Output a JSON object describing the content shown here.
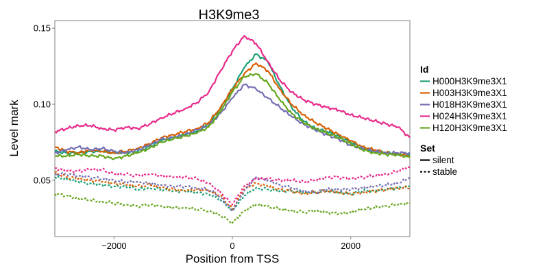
{
  "chart_data": {
    "type": "line",
    "title": "H3K9me3",
    "xlabel": "Position from TSS",
    "ylabel": "Level mark",
    "xlim": [
      -3000,
      3000
    ],
    "ylim": [
      0.013,
      0.155
    ],
    "x_ticks": [
      -2000,
      0,
      2000
    ],
    "x_tick_labels": [
      "−2000",
      "0",
      "2000"
    ],
    "y_ticks": [
      0.05,
      0.1,
      0.15
    ],
    "y_tick_labels": [
      "0.05",
      "0.10",
      "0.15"
    ],
    "grid": false,
    "legend_position": "right",
    "x": [
      -3000,
      -2800,
      -2600,
      -2400,
      -2200,
      -2000,
      -1800,
      -1600,
      -1400,
      -1200,
      -1000,
      -800,
      -600,
      -400,
      -200,
      0,
      200,
      400,
      600,
      800,
      1000,
      1200,
      1400,
      1600,
      1800,
      2000,
      2200,
      2400,
      2600,
      2800,
      3000
    ],
    "series": [
      {
        "name": "H000H3K9me3X1",
        "set": "silent",
        "color": "#1b9e77",
        "values": [
          0.069,
          0.068,
          0.068,
          0.069,
          0.069,
          0.068,
          0.068,
          0.069,
          0.072,
          0.076,
          0.078,
          0.08,
          0.082,
          0.087,
          0.097,
          0.11,
          0.124,
          0.133,
          0.128,
          0.112,
          0.098,
          0.089,
          0.084,
          0.082,
          0.079,
          0.075,
          0.071,
          0.069,
          0.068,
          0.067,
          0.067
        ]
      },
      {
        "name": "H003H3K9me3X1",
        "set": "silent",
        "color": "#d95f02",
        "values": [
          0.072,
          0.069,
          0.068,
          0.07,
          0.069,
          0.068,
          0.069,
          0.071,
          0.074,
          0.078,
          0.08,
          0.082,
          0.084,
          0.088,
          0.098,
          0.11,
          0.12,
          0.127,
          0.122,
          0.11,
          0.1,
          0.093,
          0.088,
          0.084,
          0.08,
          0.076,
          0.072,
          0.07,
          0.068,
          0.067,
          0.066
        ]
      },
      {
        "name": "H018H3K9me3X1",
        "set": "silent",
        "color": "#7570b3",
        "values": [
          0.068,
          0.07,
          0.072,
          0.07,
          0.071,
          0.069,
          0.068,
          0.07,
          0.073,
          0.077,
          0.078,
          0.08,
          0.083,
          0.086,
          0.094,
          0.104,
          0.113,
          0.11,
          0.104,
          0.098,
          0.092,
          0.087,
          0.083,
          0.08,
          0.077,
          0.073,
          0.071,
          0.069,
          0.068,
          0.068,
          0.068
        ]
      },
      {
        "name": "H024H3K9me3X1",
        "set": "silent",
        "color": "#e7298a",
        "values": [
          0.082,
          0.084,
          0.086,
          0.086,
          0.084,
          0.083,
          0.085,
          0.084,
          0.087,
          0.091,
          0.094,
          0.097,
          0.101,
          0.108,
          0.122,
          0.135,
          0.145,
          0.14,
          0.128,
          0.116,
          0.108,
          0.103,
          0.1,
          0.098,
          0.096,
          0.093,
          0.091,
          0.089,
          0.087,
          0.085,
          0.078
        ]
      },
      {
        "name": "H120H3K9me3X1",
        "set": "silent",
        "color": "#66a61e",
        "values": [
          0.066,
          0.066,
          0.067,
          0.066,
          0.066,
          0.064,
          0.066,
          0.068,
          0.071,
          0.075,
          0.077,
          0.079,
          0.081,
          0.085,
          0.095,
          0.108,
          0.118,
          0.12,
          0.114,
          0.103,
          0.094,
          0.088,
          0.084,
          0.081,
          0.078,
          0.074,
          0.07,
          0.068,
          0.067,
          0.067,
          0.065
        ]
      },
      {
        "name": "H000H3K9me3X1",
        "set": "stable",
        "color": "#1b9e77",
        "values": [
          0.052,
          0.051,
          0.049,
          0.048,
          0.047,
          0.046,
          0.046,
          0.044,
          0.045,
          0.044,
          0.043,
          0.043,
          0.042,
          0.041,
          0.037,
          0.03,
          0.04,
          0.045,
          0.044,
          0.043,
          0.043,
          0.042,
          0.042,
          0.043,
          0.042,
          0.041,
          0.043,
          0.043,
          0.044,
          0.045,
          0.046
        ]
      },
      {
        "name": "H003H3K9me3X1",
        "set": "stable",
        "color": "#d95f02",
        "values": [
          0.055,
          0.052,
          0.051,
          0.05,
          0.049,
          0.048,
          0.047,
          0.046,
          0.047,
          0.045,
          0.044,
          0.043,
          0.044,
          0.043,
          0.04,
          0.031,
          0.044,
          0.048,
          0.046,
          0.044,
          0.043,
          0.041,
          0.042,
          0.043,
          0.042,
          0.041,
          0.042,
          0.043,
          0.044,
          0.045,
          0.045
        ]
      },
      {
        "name": "H018H3K9me3X1",
        "set": "stable",
        "color": "#7570b3",
        "values": [
          0.054,
          0.054,
          0.053,
          0.052,
          0.051,
          0.05,
          0.049,
          0.049,
          0.048,
          0.047,
          0.046,
          0.046,
          0.045,
          0.044,
          0.039,
          0.03,
          0.043,
          0.052,
          0.05,
          0.047,
          0.045,
          0.043,
          0.042,
          0.044,
          0.044,
          0.044,
          0.045,
          0.046,
          0.047,
          0.048,
          0.052
        ]
      },
      {
        "name": "H024H3K9me3X1",
        "set": "stable",
        "color": "#e7298a",
        "values": [
          0.058,
          0.056,
          0.056,
          0.057,
          0.057,
          0.054,
          0.054,
          0.053,
          0.054,
          0.053,
          0.052,
          0.052,
          0.051,
          0.048,
          0.042,
          0.034,
          0.046,
          0.051,
          0.051,
          0.05,
          0.05,
          0.049,
          0.05,
          0.052,
          0.052,
          0.051,
          0.052,
          0.053,
          0.054,
          0.056,
          0.059
        ]
      },
      {
        "name": "H120H3K9me3X1",
        "set": "stable",
        "color": "#66a61e",
        "values": [
          0.041,
          0.04,
          0.038,
          0.037,
          0.036,
          0.035,
          0.034,
          0.033,
          0.034,
          0.033,
          0.032,
          0.032,
          0.031,
          0.03,
          0.027,
          0.022,
          0.03,
          0.034,
          0.033,
          0.031,
          0.03,
          0.029,
          0.03,
          0.029,
          0.028,
          0.029,
          0.031,
          0.032,
          0.033,
          0.034,
          0.035
        ]
      }
    ],
    "legend": {
      "groups": [
        {
          "title": "Id",
          "entries": [
            {
              "label": "H000H3K9me3X1",
              "color": "#1b9e77"
            },
            {
              "label": "H003H3K9me3X1",
              "color": "#d95f02"
            },
            {
              "label": "H018H3K9me3X1",
              "color": "#7570b3"
            },
            {
              "label": "H024H3K9me3X1",
              "color": "#e7298a"
            },
            {
              "label": "H120H3K9me3X1",
              "color": "#66a61e"
            }
          ]
        },
        {
          "title": "Set",
          "entries": [
            {
              "label": "silent",
              "linetype": "solid"
            },
            {
              "label": "stable",
              "linetype": "dashed"
            }
          ]
        }
      ]
    }
  }
}
